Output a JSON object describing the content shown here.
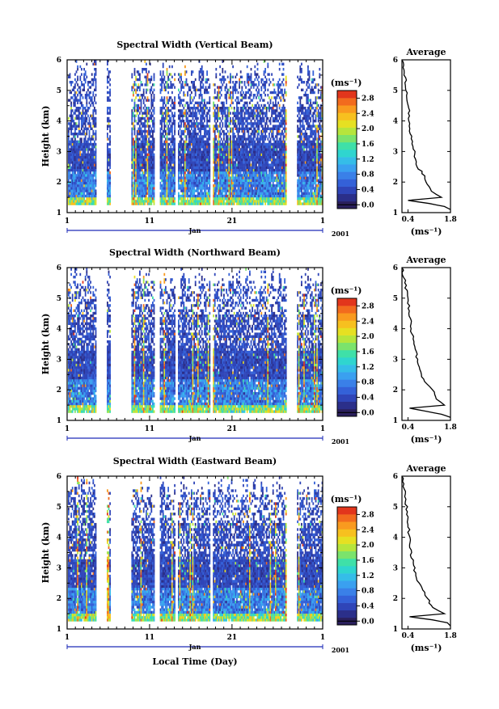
{
  "chart_data": [
    {
      "type": "heatmap",
      "title": "Spectral Width (Vertical Beam)",
      "ylabel": "Height (km)",
      "ylim": [
        1,
        6
      ],
      "yticks": [
        "1",
        "2",
        "3",
        "4",
        "5",
        "6"
      ],
      "xticks": [
        "1",
        "11",
        "21",
        "1"
      ],
      "month": "Jan",
      "year": "2001",
      "xrange_days": [
        1,
        32
      ],
      "data_gaps_days": [
        [
          4.5,
          5.7
        ],
        [
          6.2,
          8.7
        ],
        [
          11.6,
          12.2
        ],
        [
          14.0,
          14.3
        ],
        [
          18.3,
          18.6
        ],
        [
          27.5,
          28.8
        ]
      ],
      "colorbar": {
        "unit": "(ms⁻¹)",
        "min": -0.1,
        "max": 3.0,
        "ticks": [
          "0.0",
          "0.4",
          "0.8",
          "1.2",
          "1.6",
          "2.0",
          "2.4",
          "2.8"
        ]
      },
      "average_profile": {
        "title": "Average",
        "xlabel": "(ms⁻¹)",
        "xticks": [
          "0.4",
          "1.8"
        ],
        "xlim": [
          0.2,
          1.8
        ],
        "height_km": [
          1.1,
          1.2,
          1.3,
          1.4,
          1.5,
          1.7,
          2.0,
          2.2,
          2.5,
          3.0,
          3.5,
          4.0,
          4.5,
          5.0,
          5.5,
          6.0
        ],
        "width_ms": [
          1.8,
          1.6,
          1.1,
          0.4,
          1.5,
          1.15,
          1.0,
          0.95,
          0.7,
          0.6,
          0.5,
          0.45,
          0.4,
          0.35,
          0.3,
          0.2
        ]
      }
    },
    {
      "type": "heatmap",
      "title": "Spectral Width (Northward Beam)",
      "ylabel": "Height (km)",
      "ylim": [
        1,
        6
      ],
      "yticks": [
        "1",
        "2",
        "3",
        "4",
        "5",
        "6"
      ],
      "xticks": [
        "1",
        "11",
        "21",
        "1"
      ],
      "month": "Jan",
      "year": "2001",
      "xrange_days": [
        1,
        32
      ],
      "data_gaps_days": [
        [
          4.5,
          5.7
        ],
        [
          6.2,
          8.7
        ],
        [
          11.6,
          12.2
        ],
        [
          14.0,
          14.3
        ],
        [
          18.3,
          18.6
        ],
        [
          27.5,
          28.8
        ]
      ],
      "colorbar": {
        "unit": "(ms⁻¹)",
        "min": -0.1,
        "max": 3.0,
        "ticks": [
          "0.0",
          "0.4",
          "0.8",
          "1.2",
          "1.6",
          "2.0",
          "2.4",
          "2.8"
        ]
      },
      "average_profile": {
        "title": "Average",
        "xlabel": "(ms⁻¹)",
        "xticks": [
          "0.4",
          "1.8"
        ],
        "xlim": [
          0.2,
          1.8
        ],
        "height_km": [
          1.1,
          1.2,
          1.3,
          1.4,
          1.5,
          1.7,
          2.0,
          2.2,
          2.5,
          3.0,
          3.5,
          4.0,
          4.5,
          5.0,
          5.5,
          6.0
        ],
        "width_ms": [
          1.8,
          1.5,
          1.0,
          0.45,
          1.6,
          1.35,
          1.2,
          1.0,
          0.85,
          0.7,
          0.6,
          0.5,
          0.45,
          0.4,
          0.3,
          0.2
        ]
      }
    },
    {
      "type": "heatmap",
      "title": "Spectral Width (Eastward Beam)",
      "ylabel": "Height (km)",
      "ylim": [
        1,
        6
      ],
      "yticks": [
        "1",
        "2",
        "3",
        "4",
        "5",
        "6"
      ],
      "xticks": [
        "1",
        "11",
        "21",
        "1"
      ],
      "month": "Jan",
      "year": "2001",
      "xlabel": "Local Time (Day)",
      "xrange_days": [
        1,
        32
      ],
      "data_gaps_days": [
        [
          4.5,
          5.7
        ],
        [
          6.2,
          8.7
        ],
        [
          11.6,
          12.2
        ],
        [
          14.0,
          14.3
        ],
        [
          18.3,
          18.6
        ],
        [
          27.5,
          28.8
        ]
      ],
      "colorbar": {
        "unit": "(ms⁻¹)",
        "min": -0.1,
        "max": 3.0,
        "ticks": [
          "0.0",
          "0.4",
          "0.8",
          "1.2",
          "1.6",
          "2.0",
          "2.4",
          "2.8"
        ]
      },
      "average_profile": {
        "title": "Average",
        "xlabel": "(ms⁻¹)",
        "xticks": [
          "0.4",
          "1.8"
        ],
        "xlim": [
          0.2,
          1.8
        ],
        "height_km": [
          1.1,
          1.2,
          1.3,
          1.4,
          1.5,
          1.7,
          2.0,
          2.2,
          2.5,
          3.0,
          3.5,
          4.0,
          4.5,
          5.0,
          5.5,
          6.0
        ],
        "width_ms": [
          1.8,
          1.7,
          1.2,
          0.45,
          1.6,
          1.2,
          1.05,
          0.95,
          0.75,
          0.6,
          0.5,
          0.45,
          0.4,
          0.35,
          0.3,
          0.2
        ]
      }
    }
  ],
  "colormap": [
    "#2a1f5c",
    "#2b2f8a",
    "#2f45b8",
    "#3461d8",
    "#3a80e8",
    "#3aa0f0",
    "#35bde8",
    "#2fd5cf",
    "#3fe0a8",
    "#7be36c",
    "#b6e53c",
    "#e6e022",
    "#f7c01f",
    "#f99a1f",
    "#f26b1e",
    "#e2361c"
  ]
}
